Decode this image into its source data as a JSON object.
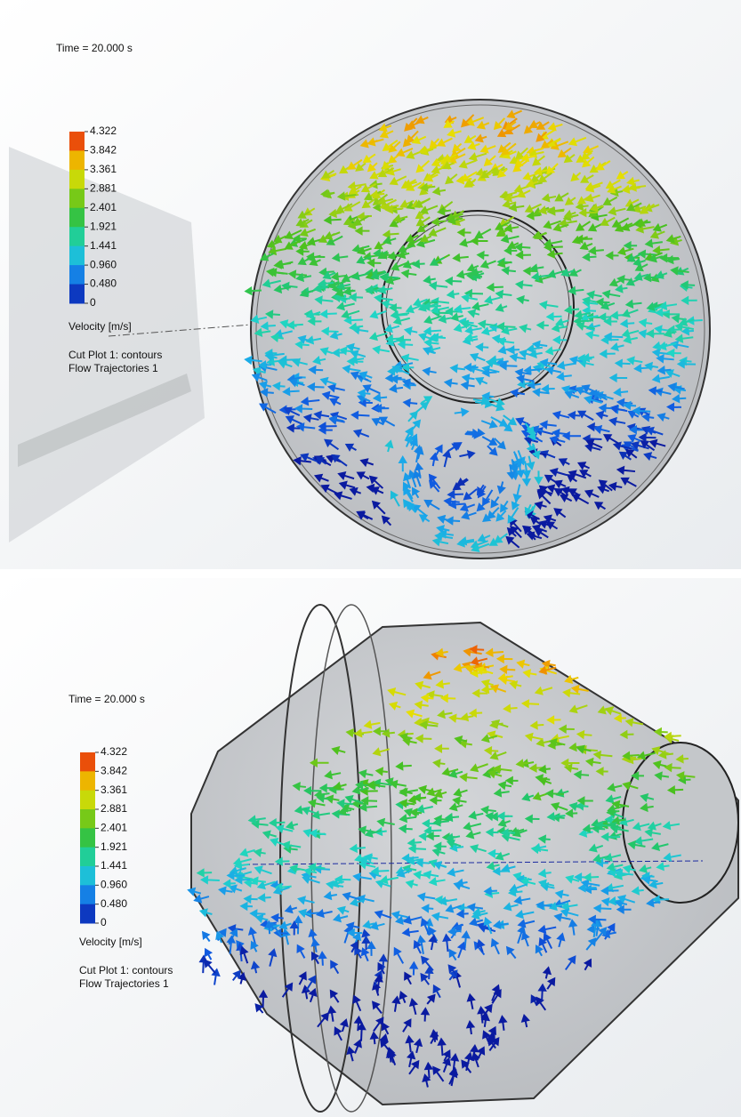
{
  "panels": [
    {
      "time_label": "Time = 20.000 s",
      "legend": {
        "ticks": [
          "4.322",
          "3.842",
          "3.361",
          "2.881",
          "2.401",
          "1.921",
          "1.441",
          "0.960",
          "0.480",
          "0"
        ],
        "title": "Velocity [m/s]"
      },
      "captions": [
        "Cut Plot 1: contours",
        "Flow Trajectories 1"
      ]
    },
    {
      "time_label": "Time = 20.000 s",
      "legend": {
        "ticks": [
          "4.322",
          "3.842",
          "3.361",
          "2.881",
          "2.401",
          "1.921",
          "1.441",
          "0.960",
          "0.480",
          "0"
        ],
        "title": "Velocity [m/s]"
      },
      "captions": [
        "Cut Plot 1: contours",
        "Flow Trajectories 1"
      ]
    }
  ]
}
